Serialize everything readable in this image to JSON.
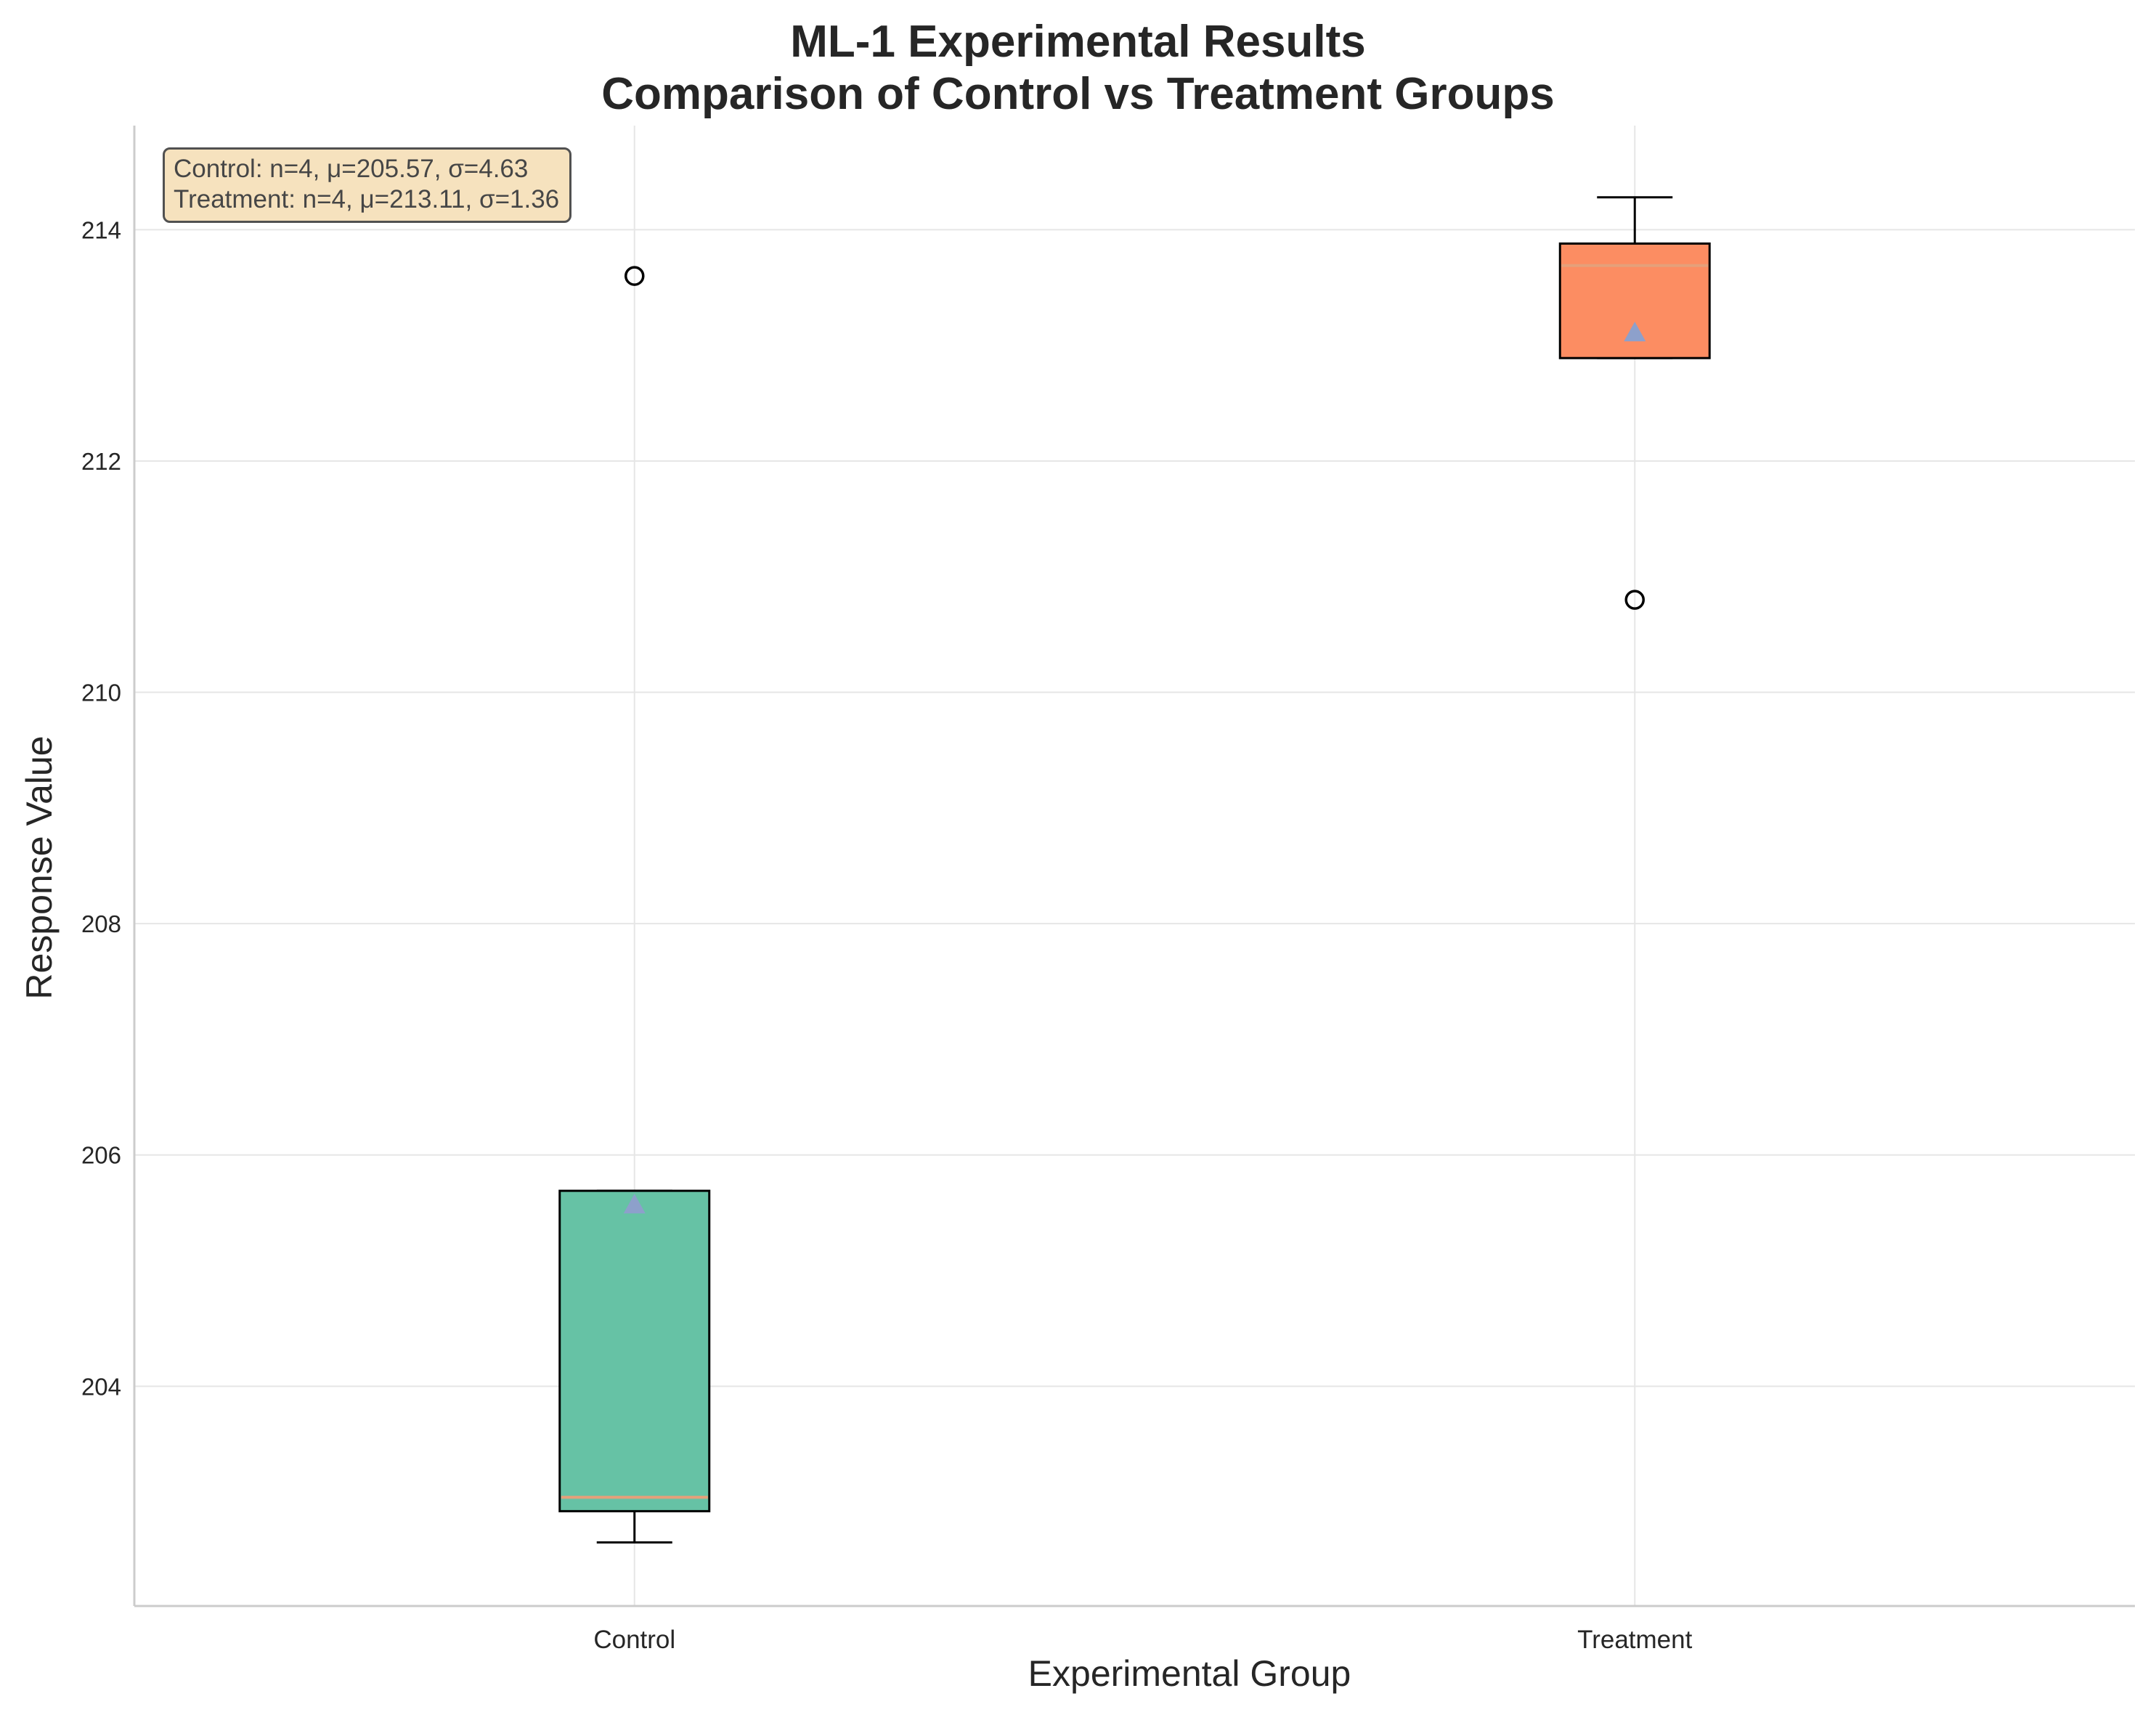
{
  "colors": {
    "control_fill": "#66c2a5",
    "treatment_fill": "#fc8d62",
    "mean_marker": "#8da0cb",
    "median_line": "#e5a07a",
    "grid": "#e6e6e6",
    "axis": "#cccccc",
    "text": "#262626",
    "stats_box_fill": "#f5deb3"
  },
  "chart_data": {
    "type": "box",
    "title": [
      "ML-1 Experimental Results",
      "Comparison of Control vs Treatment Groups"
    ],
    "xlabel": "Experimental Group",
    "ylabel": "Response Value",
    "ylim": [
      202.1,
      214.9
    ],
    "yticks": [
      204,
      206,
      208,
      210,
      212,
      214
    ],
    "grid": true,
    "categories": [
      "Control",
      "Treatment"
    ],
    "boxes": [
      {
        "name": "Control",
        "whisker_low": 202.65,
        "q1": 202.92,
        "median": 203.04,
        "q3": 205.69,
        "whisker_high": 205.69,
        "mean": 205.57,
        "outliers": [
          213.6
        ]
      },
      {
        "name": "Treatment",
        "whisker_low": 212.89,
        "q1": 212.89,
        "median": 213.69,
        "q3": 213.88,
        "whisker_high": 214.28,
        "mean": 213.11,
        "outliers": [
          210.8
        ]
      }
    ],
    "annotation": [
      "Control: n=4, μ=205.57, σ=4.63",
      "Treatment: n=4, μ=213.11, σ=1.36"
    ]
  }
}
